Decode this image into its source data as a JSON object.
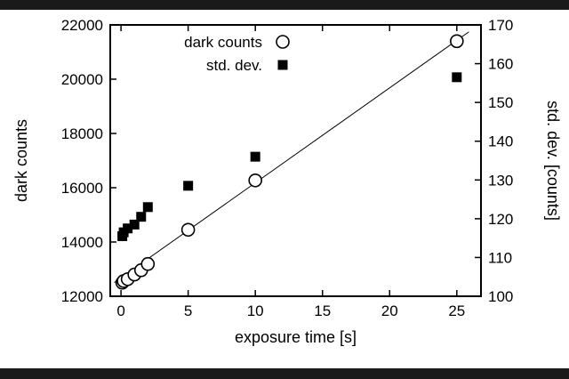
{
  "page": {
    "background_color": "#ffffff",
    "letterbox_color": "#1a1a1a",
    "plot_foreground_color": "#000000"
  },
  "chart_data": {
    "type": "scatter",
    "title": "",
    "xlabel": "exposure time [s]",
    "ylabel_left": "dark counts",
    "ylabel_right": "std. dev. [counts]",
    "xlim": [
      -0.8,
      26.8
    ],
    "ylim_left": [
      12000,
      22000
    ],
    "ylim_right": [
      100,
      170
    ],
    "xticks": [
      0,
      5,
      10,
      15,
      20,
      25
    ],
    "yticks_left": [
      12000,
      14000,
      16000,
      18000,
      20000,
      22000
    ],
    "yticks_right": [
      100,
      110,
      120,
      130,
      140,
      150,
      160,
      170
    ],
    "grid": false,
    "legend_position": "top-left-inside",
    "series": [
      {
        "name": "dark counts",
        "marker": "open-circle",
        "axis": "left",
        "x": [
          0.1,
          0.2,
          0.5,
          1,
          1.5,
          2,
          5,
          10,
          25
        ],
        "y": [
          12500,
          12560,
          12630,
          12800,
          12960,
          13190,
          14450,
          16270,
          21400
        ]
      },
      {
        "name": "std. dev.",
        "marker": "filled-square",
        "axis": "right",
        "x": [
          0.1,
          0.2,
          0.5,
          1,
          1.5,
          2,
          5,
          10,
          25
        ],
        "y": [
          115.5,
          116.5,
          117.5,
          118.5,
          120.5,
          123,
          128.5,
          136,
          156.5
        ]
      }
    ],
    "fit_line": {
      "axis": "left",
      "slope": 350,
      "intercept": 12680,
      "x_start": -0.5,
      "x_end": 25.9
    }
  }
}
